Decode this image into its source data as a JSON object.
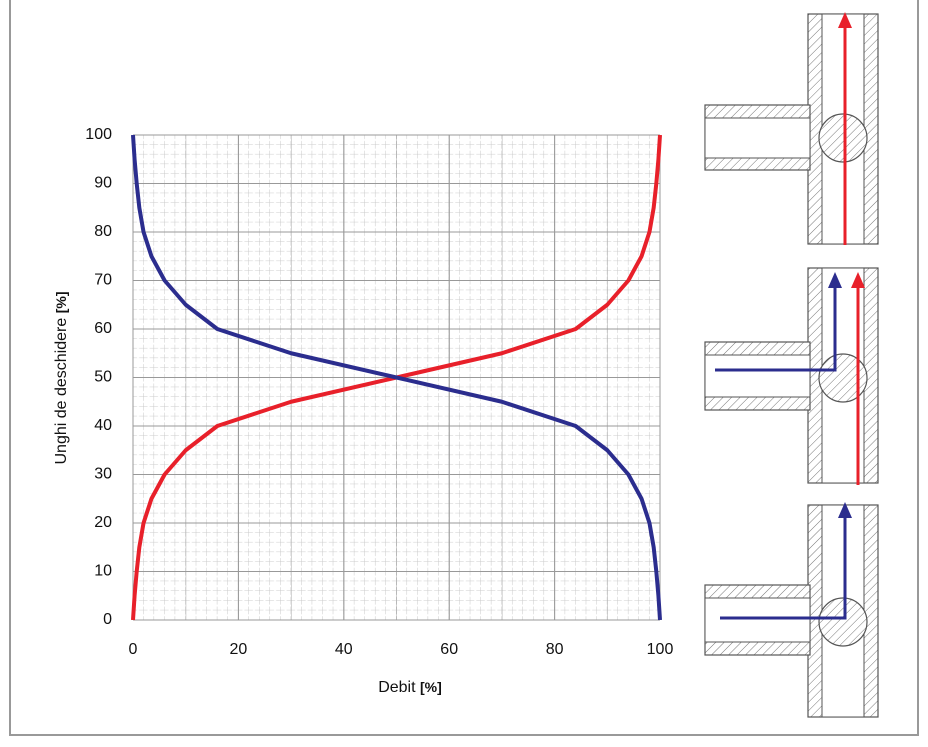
{
  "chart_data": {
    "type": "line",
    "x_label": {
      "text": "Debit",
      "unit": "[%]"
    },
    "y_label": {
      "text": "Unghi de deschidere",
      "unit": "[%]"
    },
    "xlim": [
      0,
      100
    ],
    "ylim": [
      0,
      100
    ],
    "xticks": [
      0,
      20,
      40,
      60,
      80,
      100
    ],
    "yticks": [
      0,
      10,
      20,
      30,
      40,
      50,
      60,
      70,
      80,
      90,
      100
    ],
    "grid": true,
    "series": [
      {
        "color": "#e8202a",
        "x": [
          0,
          0.3,
          0.7,
          1.2,
          2,
          3.5,
          6,
          10,
          16,
          30,
          50,
          70,
          84,
          90,
          94,
          96.5,
          98,
          98.8,
          99.3,
          99.7,
          100
        ],
        "values": [
          0,
          5,
          10,
          15,
          20,
          25,
          30,
          35,
          40,
          45,
          50,
          55,
          60,
          65,
          70,
          75,
          80,
          85,
          90,
          95,
          100
        ]
      },
      {
        "color": "#2b2d8e",
        "x": [
          100,
          99.7,
          99.3,
          98.8,
          98,
          96.5,
          94,
          90,
          84,
          70,
          50,
          30,
          16,
          10,
          6,
          3.5,
          2,
          1.2,
          0.7,
          0.3,
          0
        ],
        "values": [
          0,
          5,
          10,
          15,
          20,
          25,
          30,
          35,
          40,
          45,
          50,
          55,
          60,
          65,
          70,
          75,
          80,
          85,
          90,
          95,
          100
        ]
      }
    ]
  }
}
